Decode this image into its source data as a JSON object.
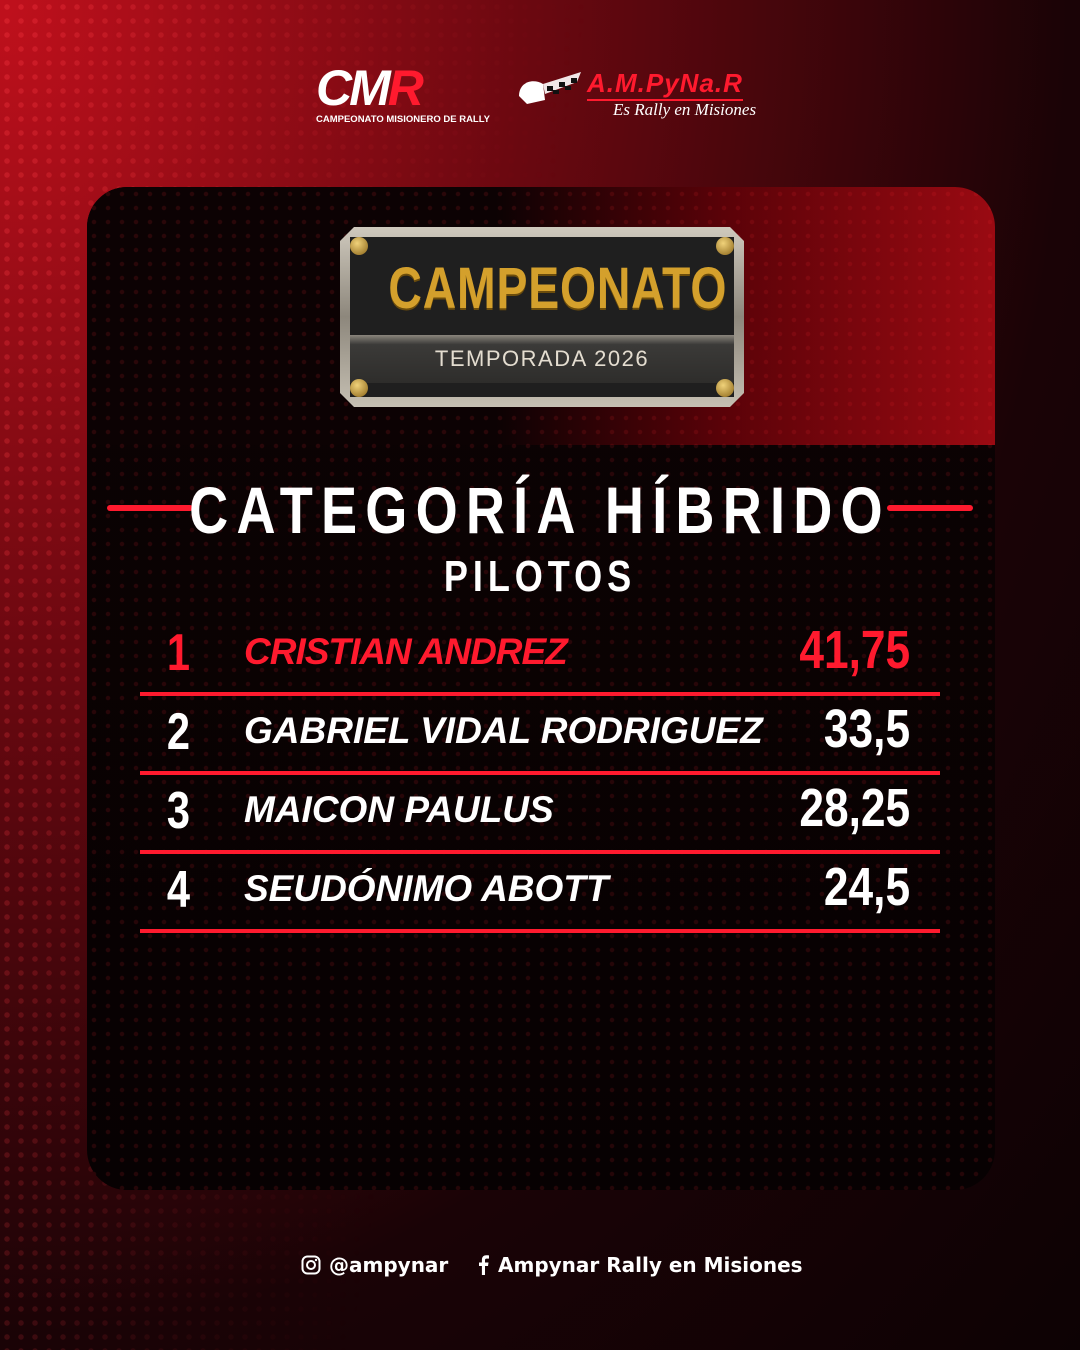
{
  "logos": {
    "cmr": {
      "mark_white": "CM",
      "mark_red": "R",
      "subtitle": "CAMPEONATO MISIONERO DE RALLY"
    },
    "ampynar": {
      "mark": "A.M.PyNa.R",
      "tagline": "Es Rally en Misiones"
    }
  },
  "plaque": {
    "title": "CAMPEONATO",
    "subtitle": "TEMPORADA 2026"
  },
  "heading": {
    "title": "CATEGORÍA HÍBRIDO",
    "subtitle": "PILOTOS"
  },
  "colors": {
    "accent": "#ff1a2e",
    "plaque_gold": "#d4a02c",
    "background": "#0c0203"
  },
  "standings": [
    {
      "position": "1",
      "name": "CRISTIAN ANDREZ",
      "points": "41,75"
    },
    {
      "position": "2",
      "name": "GABRIEL VIDAL RODRIGUEZ",
      "points": "33,5"
    },
    {
      "position": "3",
      "name": "MAICON PAULUS",
      "points": "28,25"
    },
    {
      "position": "4",
      "name": "SEUDÓNIMO ABOTT",
      "points": "24,5"
    }
  ],
  "footer": {
    "instagram": {
      "icon": "instagram-icon",
      "handle": "@ampynar"
    },
    "facebook": {
      "icon": "facebook-icon",
      "handle": "Ampynar Rally en Misiones"
    }
  }
}
